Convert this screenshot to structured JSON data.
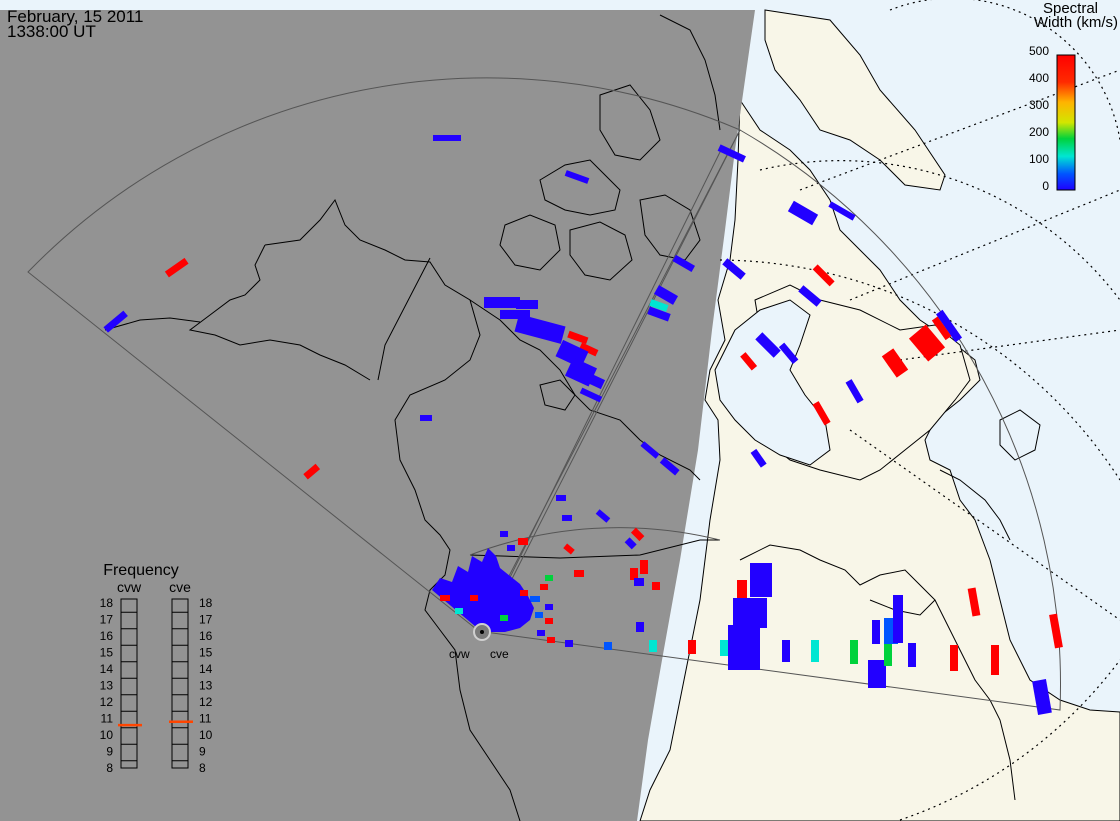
{
  "header": {
    "date": "February, 15 2011",
    "time": "1338:00 UT"
  },
  "colorbar": {
    "title_line1": "Spectral",
    "title_line2": "Width (km/s)",
    "ticks": [
      "500",
      "400",
      "300",
      "200",
      "100",
      "0"
    ],
    "gradient_colors": [
      "#ff0000",
      "#ff7a00",
      "#ffd200",
      "#00d23c",
      "#00e6d2",
      "#0055ff",
      "#1e00ff"
    ]
  },
  "frequency_panel": {
    "title": "Frequency",
    "left_label": "cvw",
    "right_label": "cve",
    "scale": [
      "18",
      "17",
      "16",
      "15",
      "14",
      "13",
      "12",
      "11",
      "10",
      "9",
      "8"
    ],
    "cvw_value_mhz": 10.6,
    "cve_value_mhz": 10.8,
    "indicator_color": "#ff4500"
  },
  "radar_sites": {
    "west": "cvw",
    "east": "cve"
  },
  "colors": {
    "night_shade": "#939393",
    "day_land": "#f8f6e8",
    "ocean": "#eaf4fb",
    "scatter_low": "#2200ff",
    "scatter_high": "#ff0000",
    "scatter_mid": "#00e6d2"
  }
}
